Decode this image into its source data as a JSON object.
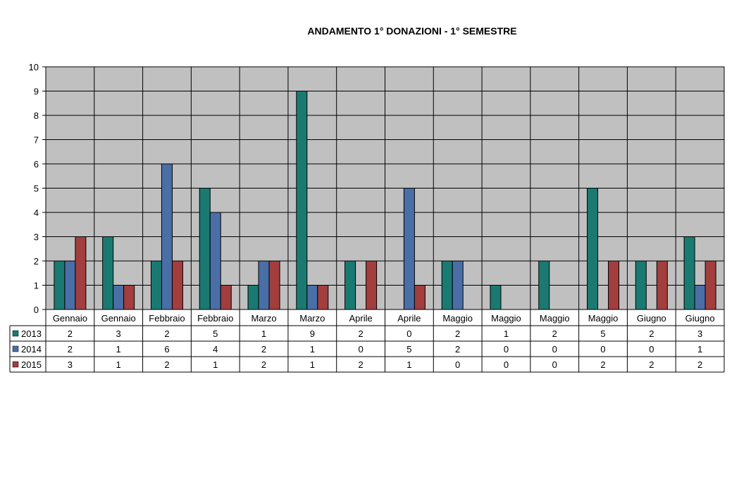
{
  "chart_data": {
    "type": "bar",
    "title": "ANDAMENTO 1° DONAZIONI  -  1° SEMESTRE",
    "categories": [
      "Gennaio",
      "Gennaio",
      "Febbraio",
      "Febbraio",
      "Marzo",
      "Marzo",
      "Aprile",
      "Aprile",
      "Maggio",
      "Maggio",
      "Maggio",
      "Maggio",
      "Giugno",
      "Giugno"
    ],
    "series": [
      {
        "name": "2013",
        "color": "#1A7A72",
        "values": [
          2,
          3,
          2,
          5,
          1,
          9,
          2,
          0,
          2,
          1,
          2,
          5,
          2,
          3
        ]
      },
      {
        "name": "2014",
        "color": "#4A6EA6",
        "values": [
          2,
          1,
          6,
          4,
          2,
          1,
          0,
          5,
          2,
          0,
          0,
          0,
          0,
          1
        ]
      },
      {
        "name": "2015",
        "color": "#A23E3E",
        "values": [
          3,
          1,
          2,
          1,
          2,
          1,
          2,
          1,
          0,
          0,
          0,
          2,
          2,
          2
        ]
      }
    ],
    "ylim": [
      0,
      10
    ],
    "yticks": [
      0,
      1,
      2,
      3,
      4,
      5,
      6,
      7,
      8,
      9,
      10
    ],
    "grid": true,
    "plot_background": "#C0C0C0",
    "legend": "data-table"
  }
}
